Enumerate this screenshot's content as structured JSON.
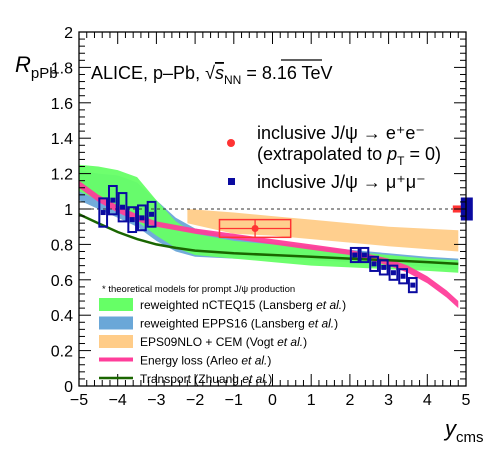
{
  "chart_data": {
    "type": "scatter",
    "title": "ALICE, p–Pb, √s_NN = 8.16 TeV",
    "title_parts": {
      "prefix": "ALICE, p–Pb, ",
      "sqrt_s": "s",
      "sqrt_sub": "NN",
      "suffix": " = 8.16 TeV"
    },
    "ylabel": {
      "main": "R",
      "sub": "pPb"
    },
    "xlabel": {
      "main": "y",
      "sub": "cms"
    },
    "xlim": [
      -5,
      5
    ],
    "ylim": [
      0,
      2
    ],
    "xticks": [
      "−5",
      "−4",
      "−3",
      "−2",
      "−1",
      "0",
      "1",
      "2",
      "3",
      "4",
      "5"
    ],
    "yticks": [
      "0",
      "0.2",
      "0.4",
      "0.6",
      "0.8",
      "1",
      "1.2",
      "1.4",
      "1.6",
      "1.8",
      "2"
    ],
    "reference_line": 1,
    "legend_top": [
      {
        "name": "inclusive J/ψ → e⁺e⁻",
        "sub_line": "(extrapolated to p_T = 0)",
        "sub_prefix": "(extrapolated to ",
        "sub_var": "p",
        "sub_sub": "T",
        "sub_suffix": " = 0)",
        "color": "#ff3333",
        "marker": "circle"
      },
      {
        "name": "inclusive J/ψ → μ⁺μ⁻",
        "color": "#0a0aa0",
        "marker": "square"
      }
    ],
    "legend_note": "* theoretical models for prompt J/ψ production",
    "legend_models": [
      {
        "name_prefix": "reweighted nCTEQ15 (Lansberg ",
        "name_italic": "et al.",
        "name_suffix": ")",
        "color": "#66ff66",
        "kind": "band"
      },
      {
        "name_prefix": "reweighted EPPS16 (Lansberg ",
        "name_italic": "et al.",
        "name_suffix": ")",
        "color": "#6aa7d8",
        "kind": "band"
      },
      {
        "name_prefix": "EPS09NLO + CEM (Vogt ",
        "name_italic": "et al.",
        "name_suffix": ")",
        "color": "#ffcc88",
        "kind": "band"
      },
      {
        "name_prefix": "Energy loss (Arleo ",
        "name_italic": "et al.",
        "name_suffix": ")",
        "color": "#ff3d9a",
        "kind": "line"
      },
      {
        "name_prefix": "Transport (Zhuang ",
        "name_italic": "et al.",
        "name_suffix": ")",
        "color": "#1a6600",
        "kind": "line"
      }
    ],
    "series": [
      {
        "name": "inclusive J/ψ → μ⁺μ⁻",
        "color": "#0a0aa0",
        "points": [
          {
            "x": -4.375,
            "y": 0.98,
            "syst": 0.08
          },
          {
            "x": -4.125,
            "y": 1.05,
            "syst": 0.08
          },
          {
            "x": -3.875,
            "y": 1.01,
            "syst": 0.08
          },
          {
            "x": -3.625,
            "y": 0.94,
            "syst": 0.07
          },
          {
            "x": -3.375,
            "y": 0.95,
            "syst": 0.07
          },
          {
            "x": -3.125,
            "y": 0.97,
            "syst": 0.07
          },
          {
            "x": 2.125,
            "y": 0.74,
            "syst": 0.04
          },
          {
            "x": 2.375,
            "y": 0.74,
            "syst": 0.04
          },
          {
            "x": 2.625,
            "y": 0.69,
            "syst": 0.04
          },
          {
            "x": 2.875,
            "y": 0.67,
            "syst": 0.04
          },
          {
            "x": 3.125,
            "y": 0.64,
            "syst": 0.04
          },
          {
            "x": 3.375,
            "y": 0.62,
            "syst": 0.04
          },
          {
            "x": 3.625,
            "y": 0.57,
            "syst": 0.04
          }
        ]
      },
      {
        "name": "inclusive J/ψ → e⁺e⁻",
        "color": "#ff3333",
        "points": [
          {
            "x": -0.45,
            "y": 0.89,
            "xerr": 0.92,
            "stat": 0.05,
            "syst": 0.05
          }
        ]
      }
    ],
    "global_uncertainties": [
      {
        "x": 4.84,
        "y": 1.0,
        "half_height": 0.02,
        "color": "#ff3333"
      },
      {
        "x": 4.84,
        "y": 1.0,
        "half_height": 0.065,
        "color": "#0a0aa0"
      }
    ],
    "models": {
      "eps09": {
        "x": [
          -2.2,
          -1,
          0,
          1,
          2,
          3,
          4.8
        ],
        "low": [
          0.92,
          0.86,
          0.85,
          0.83,
          0.81,
          0.79,
          0.76
        ],
        "high": [
          1.0,
          0.98,
          0.96,
          0.94,
          0.92,
          0.9,
          0.88
        ]
      },
      "epps16": {
        "x": [
          -5,
          -4.5,
          -4,
          -3.5,
          -3,
          -2.5,
          -2,
          -1,
          0,
          1,
          2,
          3,
          4,
          4.8
        ],
        "low": [
          1.05,
          1.0,
          0.95,
          0.9,
          0.82,
          0.76,
          0.73,
          0.72,
          0.72,
          0.71,
          0.7,
          0.69,
          0.67,
          0.66
        ],
        "high": [
          1.22,
          1.2,
          1.19,
          1.15,
          1.05,
          0.95,
          0.89,
          0.84,
          0.81,
          0.79,
          0.77,
          0.75,
          0.73,
          0.72
        ]
      },
      "ncteq15": {
        "x": [
          -5,
          -4.5,
          -4,
          -3.5,
          -3,
          -2.5,
          -2,
          -1,
          0,
          1,
          2,
          3,
          4,
          4.8
        ],
        "low": [
          1.1,
          1.05,
          1.0,
          0.93,
          0.85,
          0.78,
          0.74,
          0.72,
          0.7,
          0.68,
          0.67,
          0.66,
          0.65,
          0.64
        ],
        "high": [
          1.25,
          1.24,
          1.22,
          1.18,
          1.05,
          0.93,
          0.86,
          0.82,
          0.8,
          0.78,
          0.76,
          0.74,
          0.72,
          0.71
        ]
      },
      "energy_loss": {
        "x": [
          -5,
          -4.5,
          -4,
          -3.5,
          -3,
          -2,
          -1,
          0,
          1,
          2,
          3,
          3.5,
          4,
          4.5,
          4.8
        ],
        "low": [
          1.12,
          1.04,
          0.98,
          0.93,
          0.9,
          0.86,
          0.83,
          0.8,
          0.77,
          0.74,
          0.68,
          0.64,
          0.58,
          0.5,
          0.44
        ],
        "high": [
          1.16,
          1.08,
          1.02,
          0.97,
          0.93,
          0.89,
          0.86,
          0.83,
          0.8,
          0.77,
          0.72,
          0.68,
          0.62,
          0.54,
          0.48
        ]
      },
      "transport": {
        "x": [
          -5,
          -4.5,
          -4,
          -3.5,
          -3,
          -2.5,
          -2,
          -1,
          0,
          1,
          2,
          3,
          4,
          4.8
        ],
        "y": [
          0.97,
          0.92,
          0.87,
          0.83,
          0.8,
          0.78,
          0.765,
          0.75,
          0.74,
          0.73,
          0.72,
          0.71,
          0.7,
          0.69
        ]
      }
    }
  }
}
